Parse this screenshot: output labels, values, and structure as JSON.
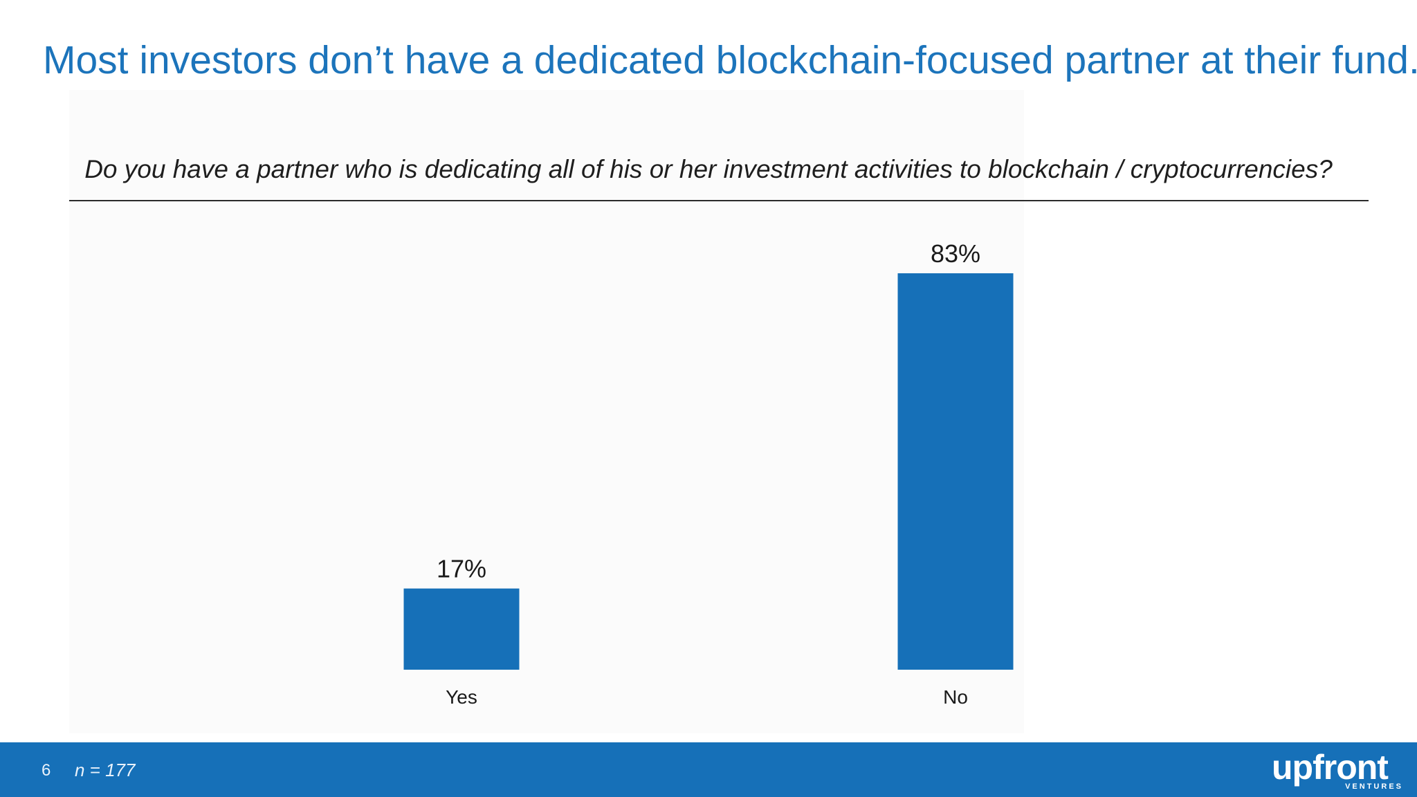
{
  "slide": {
    "title": "Most investors don’t have a dedicated blockchain-focused partner at their fund.",
    "question": "Do you have a partner who is dedicating all of his or her investment activities to blockchain / cryptocurrencies?"
  },
  "chart_data": {
    "type": "bar",
    "categories": [
      "Yes",
      "No"
    ],
    "values": [
      17,
      83
    ],
    "value_labels": [
      "17%",
      "83%"
    ],
    "ylim": [
      0,
      83
    ],
    "grid": false,
    "bar_color": "#1670b8"
  },
  "footer": {
    "page_number": "6",
    "sample_note": "n = 177",
    "logo_text": "upfront",
    "logo_subtext": "VENTURES",
    "background_color": "#1670b8"
  },
  "colors": {
    "title": "#1c74bb",
    "bar": "#1670b8"
  }
}
